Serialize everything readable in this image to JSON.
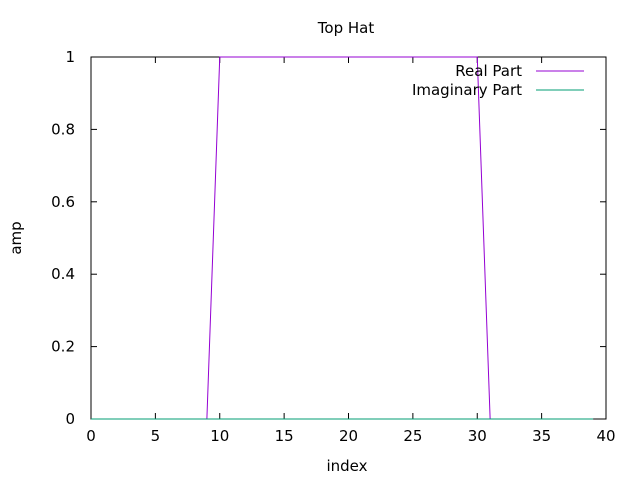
{
  "chart_data": {
    "type": "line",
    "title": "Top Hat",
    "xlabel": "index",
    "ylabel": "amp",
    "xlim": [
      0,
      40
    ],
    "ylim": [
      0,
      1
    ],
    "x_ticks": [
      "0",
      "5",
      "10",
      "15",
      "20",
      "25",
      "30",
      "35",
      "40"
    ],
    "y_ticks": [
      "0",
      "0.2",
      "0.4",
      "0.6",
      "0.8",
      "1"
    ],
    "grid": false,
    "legend_position": "top-right",
    "series": [
      {
        "name": "Real Part",
        "color": "#9400d3",
        "x": [
          0,
          1,
          2,
          3,
          4,
          5,
          6,
          7,
          8,
          9,
          10,
          11,
          12,
          13,
          14,
          15,
          16,
          17,
          18,
          19,
          20,
          21,
          22,
          23,
          24,
          25,
          26,
          27,
          28,
          29,
          30,
          31,
          32,
          33,
          34,
          35,
          36,
          37,
          38,
          39
        ],
        "y": [
          0,
          0,
          0,
          0,
          0,
          0,
          0,
          0,
          0,
          0,
          1,
          1,
          1,
          1,
          1,
          1,
          1,
          1,
          1,
          1,
          1,
          1,
          1,
          1,
          1,
          1,
          1,
          1,
          1,
          1,
          1,
          0,
          0,
          0,
          0,
          0,
          0,
          0,
          0,
          0
        ]
      },
      {
        "name": "Imaginary Part",
        "color": "#009e73",
        "x": [
          0,
          1,
          2,
          3,
          4,
          5,
          6,
          7,
          8,
          9,
          10,
          11,
          12,
          13,
          14,
          15,
          16,
          17,
          18,
          19,
          20,
          21,
          22,
          23,
          24,
          25,
          26,
          27,
          28,
          29,
          30,
          31,
          32,
          33,
          34,
          35,
          36,
          37,
          38,
          39
        ],
        "y": [
          0,
          0,
          0,
          0,
          0,
          0,
          0,
          0,
          0,
          0,
          0,
          0,
          0,
          0,
          0,
          0,
          0,
          0,
          0,
          0,
          0,
          0,
          0,
          0,
          0,
          0,
          0,
          0,
          0,
          0,
          0,
          0,
          0,
          0,
          0,
          0,
          0,
          0,
          0,
          0
        ]
      }
    ]
  }
}
